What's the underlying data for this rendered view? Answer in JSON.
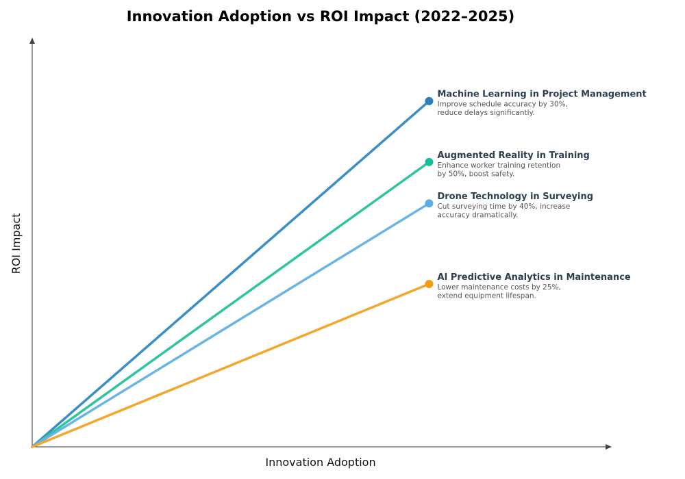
{
  "chart_data": {
    "type": "line",
    "title": "Innovation Adoption vs ROI Impact (2022–2025)",
    "xlabel": "Innovation Adoption",
    "ylabel": "ROI Impact",
    "xlim": [
      0,
      1.46
    ],
    "ylim": [
      0,
      1
    ],
    "grid": false,
    "ticks": false,
    "series": [
      {
        "name": "Machine Learning in Project Management",
        "desc": [
          "Improve schedule accuracy by 30%,",
          "reduce delays significantly."
        ],
        "x": [
          0,
          1
        ],
        "y": [
          0,
          0.845
        ],
        "color": "#3a8dc7",
        "dot": "#2a7fb8"
      },
      {
        "name": "Augmented Reality in Training",
        "desc": [
          "Enhance worker training retention",
          "by 50%, boost safety."
        ],
        "x": [
          0,
          1
        ],
        "y": [
          0,
          0.696
        ],
        "color": "#2ec4a0",
        "dot": "#1abc9c"
      },
      {
        "name": "Drone Technology in Surveying",
        "desc": [
          "Cut surveying time by 40%, increase",
          "accuracy dramatically."
        ],
        "x": [
          0,
          1
        ],
        "y": [
          0,
          0.595
        ],
        "color": "#6ab4e4",
        "dot": "#5dade2"
      },
      {
        "name": "AI Predictive Analytics in Maintenance",
        "desc": [
          "Lower maintenance costs by 25%,",
          "extend equipment lifespan."
        ],
        "x": [
          0,
          1
        ],
        "y": [
          0,
          0.398
        ],
        "color": "#f5a62a",
        "dot": "#f39c12"
      }
    ]
  }
}
